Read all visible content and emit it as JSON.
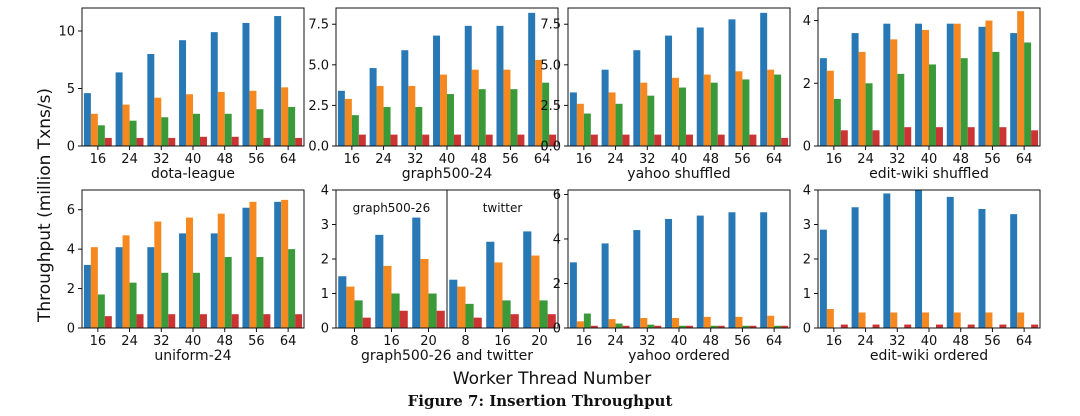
{
  "caption": "Figure 7: Insertion Throughput",
  "ylabel": "Throughput (million Txns/s)",
  "xlabel": "Worker Thread Number",
  "colors": [
    "#2878b5",
    "#f5891f",
    "#3a9a3a",
    "#cc3333"
  ],
  "chart_data": [
    {
      "type": "bar",
      "subtitle": "dota-league",
      "categories": [
        "16",
        "24",
        "32",
        "40",
        "48",
        "56",
        "64"
      ],
      "ylim": [
        0,
        12
      ],
      "yticks": [
        "0",
        "5",
        "10"
      ],
      "ytick_values": [
        0,
        5,
        10
      ],
      "series": [
        {
          "values": [
            4.6,
            6.4,
            8.0,
            9.2,
            9.9,
            10.7,
            11.3
          ]
        },
        {
          "values": [
            2.8,
            3.6,
            4.2,
            4.5,
            4.7,
            4.8,
            5.1
          ]
        },
        {
          "values": [
            1.8,
            2.2,
            2.5,
            2.8,
            2.8,
            3.2,
            3.4
          ]
        },
        {
          "values": [
            0.7,
            0.7,
            0.7,
            0.8,
            0.8,
            0.7,
            0.7
          ]
        }
      ]
    },
    {
      "type": "bar",
      "subtitle": "graph500-24",
      "categories": [
        "16",
        "24",
        "32",
        "40",
        "48",
        "56",
        "64"
      ],
      "ylim": [
        0,
        8.5
      ],
      "yticks": [
        "0.0",
        "2.5",
        "5.0",
        "7.5"
      ],
      "ytick_values": [
        0,
        2.5,
        5,
        7.5
      ],
      "series": [
        {
          "values": [
            3.4,
            4.8,
            5.9,
            6.8,
            7.4,
            7.4,
            8.2
          ]
        },
        {
          "values": [
            2.9,
            3.7,
            3.7,
            4.4,
            4.7,
            4.7,
            5.3
          ]
        },
        {
          "values": [
            1.9,
            2.4,
            2.4,
            3.2,
            3.5,
            3.5,
            3.9
          ]
        },
        {
          "values": [
            0.7,
            0.7,
            0.7,
            0.7,
            0.7,
            0.7,
            0.7
          ]
        }
      ]
    },
    {
      "type": "bar",
      "subtitle": "yahoo shuffled",
      "categories": [
        "16",
        "24",
        "32",
        "40",
        "48",
        "56",
        "64"
      ],
      "ylim": [
        0,
        8.5
      ],
      "yticks": [
        "0.0",
        "2.5",
        "5.0",
        "7.5"
      ],
      "ytick_values": [
        0,
        2.5,
        5,
        7.5
      ],
      "series": [
        {
          "values": [
            3.3,
            4.7,
            5.9,
            6.8,
            7.3,
            7.8,
            8.2
          ]
        },
        {
          "values": [
            2.6,
            3.3,
            3.9,
            4.2,
            4.4,
            4.6,
            4.7
          ]
        },
        {
          "values": [
            2.0,
            2.6,
            3.1,
            3.6,
            3.9,
            4.1,
            4.4
          ]
        },
        {
          "values": [
            0.7,
            0.7,
            0.7,
            0.7,
            0.7,
            0.7,
            0.5
          ]
        }
      ]
    },
    {
      "type": "bar",
      "subtitle": "edit-wiki shuffled",
      "categories": [
        "16",
        "24",
        "32",
        "40",
        "48",
        "56",
        "64"
      ],
      "ylim": [
        0,
        4.4
      ],
      "yticks": [
        "0",
        "2",
        "4"
      ],
      "ytick_values": [
        0,
        2,
        4
      ],
      "series": [
        {
          "values": [
            2.8,
            3.6,
            3.9,
            3.9,
            3.9,
            3.8,
            3.6
          ]
        },
        {
          "values": [
            2.4,
            3.0,
            3.4,
            3.7,
            3.9,
            4.0,
            4.3
          ]
        },
        {
          "values": [
            1.5,
            2.0,
            2.3,
            2.6,
            2.8,
            3.0,
            3.3
          ]
        },
        {
          "values": [
            0.5,
            0.5,
            0.6,
            0.6,
            0.6,
            0.6,
            0.5
          ]
        }
      ]
    },
    {
      "type": "bar",
      "subtitle": "uniform-24",
      "categories": [
        "16",
        "24",
        "32",
        "40",
        "48",
        "56",
        "64"
      ],
      "ylim": [
        0,
        7
      ],
      "yticks": [
        "0",
        "2",
        "4",
        "6"
      ],
      "ytick_values": [
        0,
        2,
        4,
        6
      ],
      "series": [
        {
          "values": [
            3.2,
            4.1,
            4.1,
            4.8,
            4.8,
            6.1,
            6.4
          ]
        },
        {
          "values": [
            4.1,
            4.7,
            5.4,
            5.6,
            5.8,
            6.4,
            6.5
          ]
        },
        {
          "values": [
            1.7,
            2.3,
            2.8,
            2.8,
            3.6,
            3.6,
            4.0
          ]
        },
        {
          "values": [
            0.6,
            0.7,
            0.7,
            0.7,
            0.7,
            0.7,
            0.7
          ]
        }
      ]
    },
    {
      "type": "bar",
      "subtitle": "graph500-26 and twitter",
      "annotations": [
        "graph500-26",
        "twitter"
      ],
      "categories": [
        "8",
        "16",
        "20",
        "8",
        "16",
        "20"
      ],
      "ylim": [
        0,
        4
      ],
      "yticks": [
        "0",
        "1",
        "2",
        "3",
        "4"
      ],
      "ytick_values": [
        0,
        1,
        2,
        3,
        4
      ],
      "series": [
        {
          "values": [
            1.5,
            2.7,
            3.2,
            1.4,
            2.5,
            2.8
          ]
        },
        {
          "values": [
            1.2,
            1.8,
            2.0,
            1.2,
            1.9,
            2.1
          ]
        },
        {
          "values": [
            0.8,
            1.0,
            1.0,
            0.7,
            0.8,
            0.8
          ]
        },
        {
          "values": [
            0.3,
            0.5,
            0.5,
            0.3,
            0.4,
            0.4
          ]
        }
      ]
    },
    {
      "type": "bar",
      "subtitle": "yahoo ordered",
      "categories": [
        "16",
        "24",
        "32",
        "40",
        "48",
        "56",
        "64"
      ],
      "ylim": [
        0,
        6.2
      ],
      "yticks": [
        "0",
        "2",
        "4",
        "6"
      ],
      "ytick_values": [
        0,
        2,
        4,
        6
      ],
      "series": [
        {
          "values": [
            2.95,
            3.8,
            4.4,
            4.9,
            5.05,
            5.2,
            5.2
          ]
        },
        {
          "values": [
            0.3,
            0.4,
            0.45,
            0.45,
            0.5,
            0.5,
            0.55
          ]
        },
        {
          "values": [
            0.65,
            0.2,
            0.15,
            0.1,
            0.1,
            0.1,
            0.1
          ]
        },
        {
          "values": [
            0.1,
            0.1,
            0.1,
            0.1,
            0.1,
            0.1,
            0.1
          ]
        }
      ]
    },
    {
      "type": "bar",
      "subtitle": "edit-wiki ordered",
      "categories": [
        "16",
        "24",
        "32",
        "40",
        "48",
        "56",
        "64"
      ],
      "ylim": [
        0,
        4
      ],
      "yticks": [
        "0",
        "1",
        "2",
        "3",
        "4"
      ],
      "ytick_values": [
        0,
        1,
        2,
        3,
        4
      ],
      "series": [
        {
          "values": [
            2.85,
            3.5,
            3.9,
            4.0,
            3.8,
            3.45,
            3.3
          ]
        },
        {
          "values": [
            0.55,
            0.45,
            0.45,
            0.45,
            0.45,
            0.45,
            0.45
          ]
        },
        {
          "values": [
            0.0,
            0.0,
            0.0,
            0.0,
            0.0,
            0.0,
            0.0
          ]
        },
        {
          "values": [
            0.1,
            0.1,
            0.1,
            0.1,
            0.1,
            0.1,
            0.1
          ]
        }
      ]
    }
  ]
}
